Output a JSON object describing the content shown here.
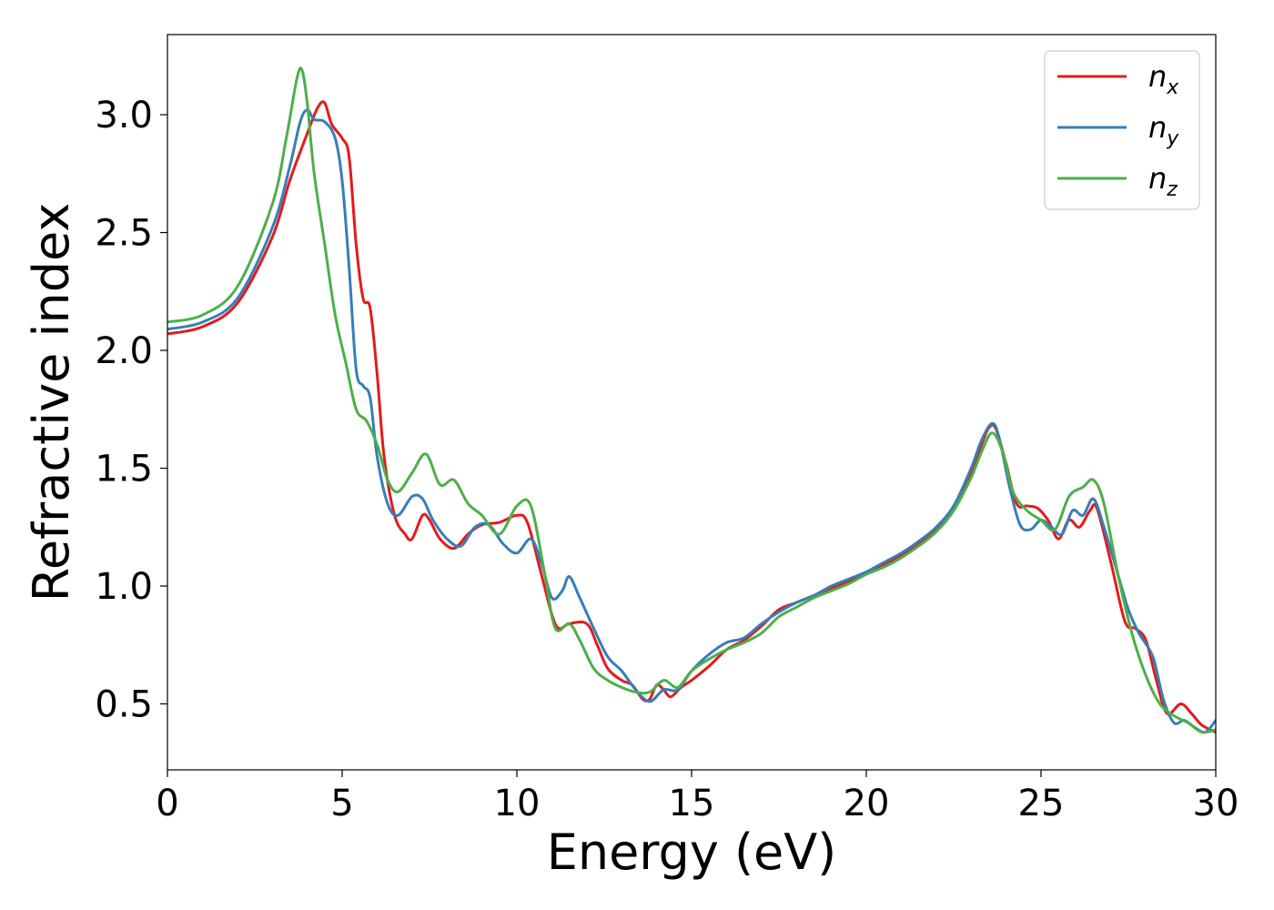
{
  "chart_data": {
    "type": "line",
    "xlabel": "Energy (eV)",
    "ylabel": "Refractive index",
    "xlim": [
      0,
      30
    ],
    "ylim": [
      0.22,
      3.34
    ],
    "xticks": [
      0,
      5,
      10,
      15,
      20,
      25,
      30
    ],
    "yticks": [
      0.5,
      1.0,
      1.5,
      2.0,
      2.5,
      3.0
    ],
    "xtick_labels": [
      "0",
      "5",
      "10",
      "15",
      "20",
      "25",
      "30"
    ],
    "ytick_labels": [
      "0.5",
      "1.0",
      "1.5",
      "2.0",
      "2.5",
      "3.0"
    ],
    "grid": false,
    "legend_position": "top-right",
    "series": [
      {
        "name": "n_x",
        "label_base": "n",
        "label_sub": "x",
        "color": "#e41a1c",
        "points": [
          [
            0,
            2.07
          ],
          [
            1,
            2.1
          ],
          [
            2,
            2.2
          ],
          [
            3,
            2.48
          ],
          [
            3.5,
            2.72
          ],
          [
            4.0,
            2.92
          ],
          [
            4.3,
            3.03
          ],
          [
            4.5,
            3.05
          ],
          [
            4.7,
            2.96
          ],
          [
            5.0,
            2.9
          ],
          [
            5.2,
            2.82
          ],
          [
            5.4,
            2.45
          ],
          [
            5.6,
            2.22
          ],
          [
            5.8,
            2.18
          ],
          [
            6.0,
            1.9
          ],
          [
            6.2,
            1.55
          ],
          [
            6.5,
            1.3
          ],
          [
            6.8,
            1.22
          ],
          [
            7.0,
            1.2
          ],
          [
            7.3,
            1.3
          ],
          [
            7.5,
            1.28
          ],
          [
            7.8,
            1.2
          ],
          [
            8.2,
            1.16
          ],
          [
            8.6,
            1.22
          ],
          [
            9.0,
            1.26
          ],
          [
            9.5,
            1.27
          ],
          [
            10.0,
            1.3
          ],
          [
            10.3,
            1.27
          ],
          [
            10.7,
            1.05
          ],
          [
            11.0,
            0.88
          ],
          [
            11.2,
            0.82
          ],
          [
            11.5,
            0.84
          ],
          [
            12.0,
            0.84
          ],
          [
            12.3,
            0.75
          ],
          [
            12.6,
            0.65
          ],
          [
            13.0,
            0.6
          ],
          [
            13.3,
            0.58
          ],
          [
            13.6,
            0.52
          ],
          [
            13.8,
            0.52
          ],
          [
            14.0,
            0.58
          ],
          [
            14.2,
            0.56
          ],
          [
            14.4,
            0.53
          ],
          [
            14.7,
            0.57
          ],
          [
            15.0,
            0.6
          ],
          [
            15.5,
            0.66
          ],
          [
            16.0,
            0.73
          ],
          [
            16.5,
            0.77
          ],
          [
            17.0,
            0.83
          ],
          [
            17.5,
            0.9
          ],
          [
            18.0,
            0.93
          ],
          [
            18.5,
            0.96
          ],
          [
            19.0,
            0.99
          ],
          [
            19.5,
            1.02
          ],
          [
            20.0,
            1.05
          ],
          [
            20.5,
            1.09
          ],
          [
            21.0,
            1.13
          ],
          [
            21.5,
            1.18
          ],
          [
            22.0,
            1.24
          ],
          [
            22.5,
            1.33
          ],
          [
            23.0,
            1.48
          ],
          [
            23.3,
            1.6
          ],
          [
            23.5,
            1.67
          ],
          [
            23.7,
            1.67
          ],
          [
            24.0,
            1.52
          ],
          [
            24.3,
            1.35
          ],
          [
            24.6,
            1.34
          ],
          [
            24.9,
            1.33
          ],
          [
            25.2,
            1.28
          ],
          [
            25.5,
            1.2
          ],
          [
            25.8,
            1.28
          ],
          [
            26.1,
            1.25
          ],
          [
            26.4,
            1.32
          ],
          [
            26.6,
            1.33
          ],
          [
            27.0,
            1.1
          ],
          [
            27.4,
            0.85
          ],
          [
            27.7,
            0.82
          ],
          [
            28.0,
            0.77
          ],
          [
            28.3,
            0.6
          ],
          [
            28.6,
            0.46
          ],
          [
            29.0,
            0.5
          ],
          [
            29.3,
            0.46
          ],
          [
            29.6,
            0.41
          ],
          [
            30.0,
            0.38
          ]
        ]
      },
      {
        "name": "n_y",
        "label_base": "n",
        "label_sub": "y",
        "color": "#377eb8",
        "points": [
          [
            0,
            2.09
          ],
          [
            1,
            2.12
          ],
          [
            2,
            2.22
          ],
          [
            3,
            2.52
          ],
          [
            3.5,
            2.78
          ],
          [
            3.8,
            2.97
          ],
          [
            4.0,
            3.02
          ],
          [
            4.2,
            2.98
          ],
          [
            4.5,
            2.97
          ],
          [
            4.8,
            2.9
          ],
          [
            5.0,
            2.72
          ],
          [
            5.2,
            2.35
          ],
          [
            5.4,
            1.92
          ],
          [
            5.6,
            1.85
          ],
          [
            5.8,
            1.8
          ],
          [
            6.0,
            1.55
          ],
          [
            6.3,
            1.35
          ],
          [
            6.6,
            1.3
          ],
          [
            7.0,
            1.38
          ],
          [
            7.3,
            1.37
          ],
          [
            7.6,
            1.28
          ],
          [
            8.0,
            1.2
          ],
          [
            8.4,
            1.17
          ],
          [
            8.8,
            1.25
          ],
          [
            9.2,
            1.26
          ],
          [
            9.6,
            1.18
          ],
          [
            10.0,
            1.14
          ],
          [
            10.4,
            1.2
          ],
          [
            10.7,
            1.1
          ],
          [
            11.0,
            0.95
          ],
          [
            11.3,
            0.98
          ],
          [
            11.5,
            1.04
          ],
          [
            11.8,
            0.95
          ],
          [
            12.2,
            0.82
          ],
          [
            12.6,
            0.7
          ],
          [
            13.0,
            0.64
          ],
          [
            13.4,
            0.56
          ],
          [
            13.8,
            0.51
          ],
          [
            14.2,
            0.56
          ],
          [
            14.6,
            0.56
          ],
          [
            15.0,
            0.64
          ],
          [
            15.5,
            0.71
          ],
          [
            16.0,
            0.76
          ],
          [
            16.5,
            0.78
          ],
          [
            17.0,
            0.84
          ],
          [
            17.5,
            0.89
          ],
          [
            18.0,
            0.93
          ],
          [
            18.5,
            0.96
          ],
          [
            19.0,
            1.0
          ],
          [
            19.5,
            1.03
          ],
          [
            20.0,
            1.06
          ],
          [
            20.5,
            1.1
          ],
          [
            21.0,
            1.14
          ],
          [
            21.5,
            1.19
          ],
          [
            22.0,
            1.25
          ],
          [
            22.5,
            1.34
          ],
          [
            23.0,
            1.5
          ],
          [
            23.3,
            1.62
          ],
          [
            23.6,
            1.69
          ],
          [
            23.8,
            1.63
          ],
          [
            24.1,
            1.42
          ],
          [
            24.4,
            1.26
          ],
          [
            24.7,
            1.24
          ],
          [
            25.0,
            1.28
          ],
          [
            25.3,
            1.25
          ],
          [
            25.6,
            1.22
          ],
          [
            25.9,
            1.32
          ],
          [
            26.2,
            1.3
          ],
          [
            26.5,
            1.37
          ],
          [
            26.8,
            1.25
          ],
          [
            27.2,
            1.05
          ],
          [
            27.5,
            0.9
          ],
          [
            27.8,
            0.8
          ],
          [
            28.2,
            0.7
          ],
          [
            28.5,
            0.52
          ],
          [
            28.8,
            0.42
          ],
          [
            29.1,
            0.43
          ],
          [
            29.4,
            0.4
          ],
          [
            29.7,
            0.38
          ],
          [
            30.0,
            0.43
          ]
        ]
      },
      {
        "name": "n_z",
        "label_base": "n",
        "label_sub": "z",
        "color": "#4daf4a",
        "points": [
          [
            0,
            2.12
          ],
          [
            1,
            2.15
          ],
          [
            2,
            2.27
          ],
          [
            3,
            2.62
          ],
          [
            3.4,
            2.9
          ],
          [
            3.7,
            3.15
          ],
          [
            3.85,
            3.19
          ],
          [
            4.0,
            3.05
          ],
          [
            4.2,
            2.75
          ],
          [
            4.5,
            2.45
          ],
          [
            4.8,
            2.15
          ],
          [
            5.1,
            1.95
          ],
          [
            5.4,
            1.75
          ],
          [
            5.7,
            1.7
          ],
          [
            6.0,
            1.6
          ],
          [
            6.3,
            1.45
          ],
          [
            6.6,
            1.4
          ],
          [
            7.0,
            1.48
          ],
          [
            7.4,
            1.56
          ],
          [
            7.8,
            1.43
          ],
          [
            8.2,
            1.45
          ],
          [
            8.6,
            1.35
          ],
          [
            9.0,
            1.3
          ],
          [
            9.5,
            1.22
          ],
          [
            10.0,
            1.34
          ],
          [
            10.4,
            1.34
          ],
          [
            10.8,
            1.05
          ],
          [
            11.1,
            0.82
          ],
          [
            11.5,
            0.84
          ],
          [
            11.8,
            0.77
          ],
          [
            12.2,
            0.65
          ],
          [
            12.6,
            0.6
          ],
          [
            13.0,
            0.57
          ],
          [
            13.4,
            0.55
          ],
          [
            13.8,
            0.55
          ],
          [
            14.2,
            0.6
          ],
          [
            14.6,
            0.57
          ],
          [
            15.0,
            0.64
          ],
          [
            15.5,
            0.69
          ],
          [
            16.0,
            0.73
          ],
          [
            16.5,
            0.76
          ],
          [
            17.0,
            0.8
          ],
          [
            17.5,
            0.87
          ],
          [
            18.0,
            0.91
          ],
          [
            18.5,
            0.95
          ],
          [
            19.0,
            0.98
          ],
          [
            19.5,
            1.01
          ],
          [
            20.0,
            1.05
          ],
          [
            20.5,
            1.08
          ],
          [
            21.0,
            1.12
          ],
          [
            21.5,
            1.17
          ],
          [
            22.0,
            1.23
          ],
          [
            22.5,
            1.32
          ],
          [
            23.0,
            1.46
          ],
          [
            23.3,
            1.57
          ],
          [
            23.6,
            1.65
          ],
          [
            23.9,
            1.57
          ],
          [
            24.2,
            1.4
          ],
          [
            24.6,
            1.32
          ],
          [
            25.0,
            1.28
          ],
          [
            25.4,
            1.24
          ],
          [
            25.8,
            1.38
          ],
          [
            26.2,
            1.42
          ],
          [
            26.5,
            1.45
          ],
          [
            26.8,
            1.35
          ],
          [
            27.2,
            1.05
          ],
          [
            27.6,
            0.8
          ],
          [
            28.0,
            0.62
          ],
          [
            28.4,
            0.5
          ],
          [
            28.8,
            0.45
          ],
          [
            29.2,
            0.42
          ],
          [
            29.6,
            0.38
          ],
          [
            30.0,
            0.39
          ]
        ]
      }
    ]
  }
}
